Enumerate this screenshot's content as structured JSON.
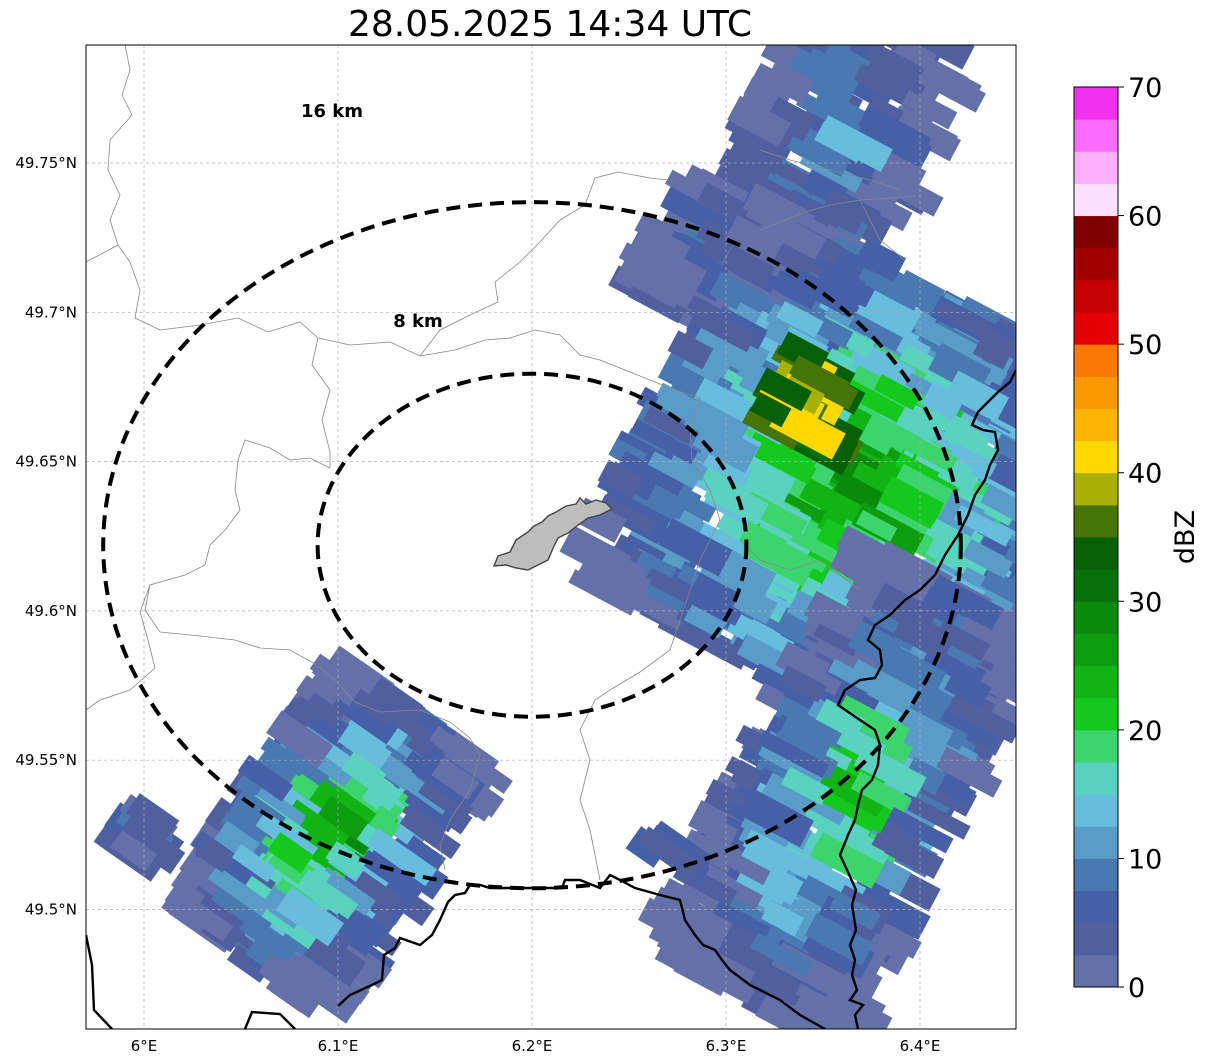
{
  "title": "28.05.2025 14:34 UTC",
  "map": {
    "lon_ticks": [
      {
        "value": 6.0,
        "label": "6°E"
      },
      {
        "value": 6.1,
        "label": "6.1°E"
      },
      {
        "value": 6.2,
        "label": "6.2°E"
      },
      {
        "value": 6.3,
        "label": "6.3°E"
      },
      {
        "value": 6.4,
        "label": "6.4°E"
      }
    ],
    "lat_ticks": [
      {
        "value": 49.75,
        "label": "49.75°N"
      },
      {
        "value": 49.7,
        "label": "49.7°N"
      },
      {
        "value": 49.65,
        "label": "49.65°N"
      },
      {
        "value": 49.6,
        "label": "49.6°N"
      },
      {
        "value": 49.55,
        "label": "49.55°N"
      },
      {
        "value": 49.5,
        "label": "49.5°N"
      }
    ],
    "range_rings": [
      {
        "label": "8 km",
        "radius_km": 8
      },
      {
        "label": "16 km",
        "radius_km": 16
      }
    ],
    "gridlines": "dashed",
    "radar_center": {
      "lon": 6.2,
      "lat": 49.622
    }
  },
  "colorbar": {
    "label": "dBZ",
    "min": 0,
    "max": 70,
    "ticks": [
      0,
      10,
      20,
      30,
      40,
      50,
      60,
      70
    ],
    "colors": [
      "#6470a8",
      "#50609e",
      "#4660a8",
      "#4a78b0",
      "#5a9cc8",
      "#66bedc",
      "#5ad2c0",
      "#3cd46c",
      "#14c81e",
      "#10b414",
      "#0c9e0e",
      "#0a8a0a",
      "#087008",
      "#066006",
      "#467406",
      "#a8b006",
      "#fcd802",
      "#fcb400",
      "#fc9800",
      "#fc7800",
      "#e40000",
      "#c40000",
      "#a00000",
      "#800000",
      "#fce0fc",
      "#fcb0fc",
      "#fc6cfc",
      "#f032f0"
    ]
  }
}
